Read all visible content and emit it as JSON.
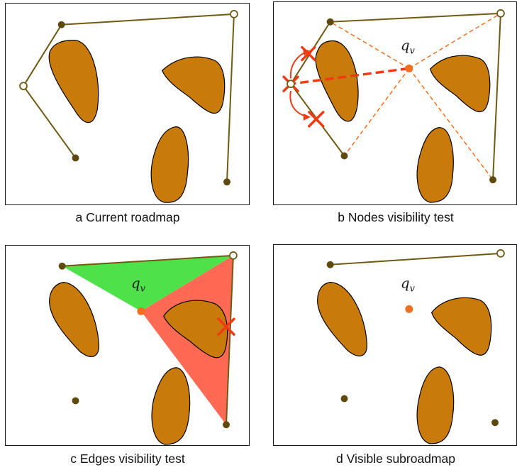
{
  "panels": [
    {
      "id": "a",
      "caption": "a Current roadmap"
    },
    {
      "id": "b",
      "caption": "b Nodes visibility test",
      "query_label": "q",
      "query_sub": "v"
    },
    {
      "id": "c",
      "caption": "c Edges visibility test",
      "query_label": "q",
      "query_sub": "v"
    },
    {
      "id": "d",
      "caption": "d Visible subroadmap",
      "query_label": "q",
      "query_sub": "v"
    }
  ],
  "colors": {
    "obstacle": "#c87a0a",
    "edge": "#6e5a12",
    "node": "#5e4a0e",
    "query": "#f07020",
    "visible_region": "#4ee14a",
    "blocked_region": "#ff6a55",
    "cross": "#f03a14"
  }
}
